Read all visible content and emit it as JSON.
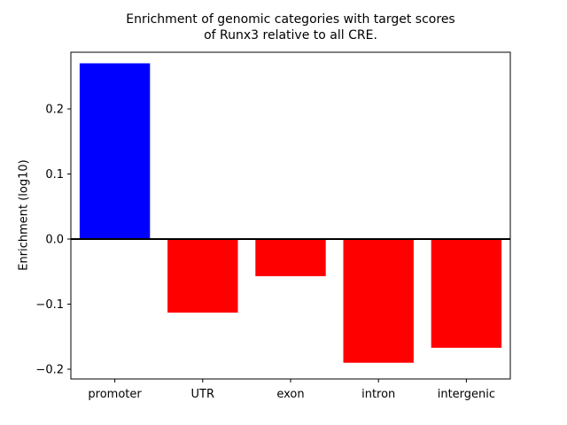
{
  "figure": {
    "background": "#ffffff"
  },
  "chart_data": {
    "type": "bar",
    "title": "Enrichment of genomic categories with target scores\nof Runx3 relative to all CRE.",
    "xlabel": "",
    "ylabel": "Enrichment (log10)",
    "categories": [
      "promoter",
      "UTR",
      "exon",
      "intron",
      "intergenic"
    ],
    "values": [
      0.27,
      -0.113,
      -0.057,
      -0.19,
      -0.167
    ],
    "bar_colors": [
      "#0000ff",
      "#ff0000",
      "#ff0000",
      "#ff0000",
      "#ff0000"
    ],
    "yticks": [
      -0.2,
      -0.1,
      0.0,
      0.1,
      0.2
    ],
    "ylim": [
      -0.215,
      0.287
    ],
    "zero_line": true,
    "zero_line_color": "#000000",
    "grid": false,
    "legend_position": "none",
    "axis_color": "#000000"
  }
}
